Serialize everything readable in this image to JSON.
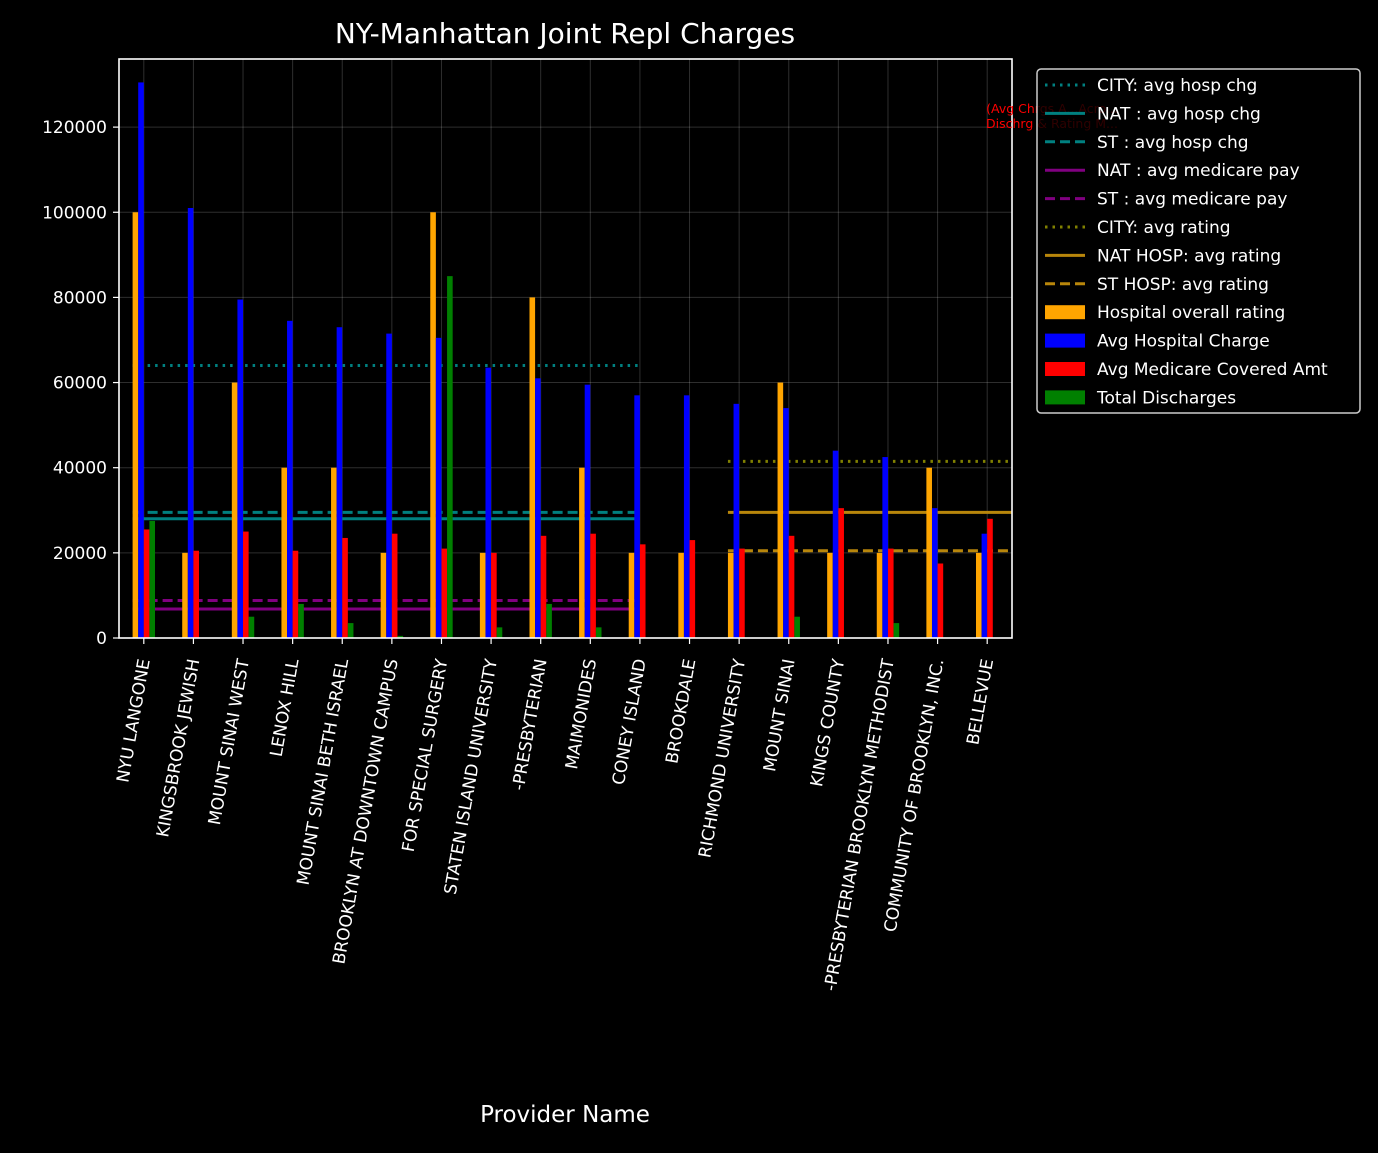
{
  "chart_data": {
    "type": "bar",
    "title": "NY-Manhattan Joint Repl Charges",
    "xlabel": "Provider Name",
    "ylabel": "",
    "ylim": [
      0,
      136000
    ],
    "yticks": [
      "0",
      "20000",
      "40000",
      "60000",
      "80000",
      "100000",
      "120000"
    ],
    "grid": true,
    "legend_position": "outside top-right",
    "annotation": [
      "(Avg Chrgs A...Acro...",
      "Dischrg & Rating M..."
    ],
    "categories": [
      "NYU LANGONE",
      "KINGSBROOK JEWISH",
      "MOUNT SINAI WEST",
      "LENOX HILL",
      "MOUNT SINAI BETH ISRAEL",
      "BROOKLYN   AT DOWNTOWN CAMPUS",
      "FOR SPECIAL SURGERY",
      "STATEN ISLAND UNIVERSITY",
      "-PRESBYTERIAN",
      "MAIMONIDES",
      "CONEY ISLAND",
      "BROOKDALE",
      "RICHMOND UNIVERSITY",
      "MOUNT SINAI",
      "KINGS COUNTY",
      "-PRESBYTERIAN BROOKLYN METHODIST",
      "COMMUNITY  OF BROOKLYN, INC.",
      "BELLEVUE"
    ],
    "series": [
      {
        "name": "Hospital overall rating",
        "color": "#ffa500",
        "values": [
          100000,
          20000,
          60000,
          40000,
          40000,
          20000,
          100000,
          20000,
          80000,
          40000,
          20000,
          20000,
          20000,
          60000,
          20000,
          20000,
          40000,
          20000
        ]
      },
      {
        "name": "Avg Hospital Charge",
        "color": "#0000ff",
        "values": [
          130500,
          101000,
          79500,
          74500,
          73000,
          71500,
          70500,
          63500,
          61000,
          59500,
          57000,
          57000,
          55000,
          54000,
          44000,
          42500,
          30500,
          24500
        ]
      },
      {
        "name": "Avg Medicare Covered Amt",
        "color": "#ff0000",
        "values": [
          25500,
          20500,
          25000,
          20500,
          23500,
          24500,
          21000,
          20000,
          24000,
          24500,
          22000,
          23000,
          21000,
          24000,
          30500,
          21000,
          17500,
          28000
        ]
      },
      {
        "name": "Total Discharges",
        "color": "#008000",
        "values": [
          27500,
          0,
          5000,
          8000,
          3500,
          500,
          85000,
          2500,
          8000,
          2500,
          0,
          0,
          0,
          5000,
          0,
          3500,
          0,
          0
        ]
      }
    ],
    "reference_lines": [
      {
        "name": "CITY: avg hosp chg",
        "color": "#008080",
        "style": "dotted",
        "value": 64000,
        "range": [
          0,
          10
        ]
      },
      {
        "name": "NAT : avg hosp chg",
        "color": "#008080",
        "style": "solid",
        "value": 28000,
        "range": [
          0,
          10
        ]
      },
      {
        "name": "ST   : avg hosp chg",
        "color": "#008080",
        "style": "dashed",
        "value": 29500,
        "range": [
          0,
          10
        ]
      },
      {
        "name": "NAT : avg medicare pay",
        "color": "#800080",
        "style": "solid",
        "value": 6800,
        "range": [
          0,
          10
        ]
      },
      {
        "name": "ST   : avg medicare pay",
        "color": "#800080",
        "style": "dashed",
        "value": 8800,
        "range": [
          0,
          10
        ]
      },
      {
        "name": "CITY: avg rating",
        "color": "#808000",
        "style": "dotted",
        "value": 41500,
        "range": [
          12,
          17
        ]
      },
      {
        "name": "NAT HOSP: avg rating",
        "color": "#b8860b",
        "style": "solid",
        "value": 29500,
        "range": [
          12,
          17
        ]
      },
      {
        "name": "ST  HOSP: avg rating",
        "color": "#b8860b",
        "style": "dashed",
        "value": 20500,
        "range": [
          12,
          17
        ]
      }
    ]
  }
}
